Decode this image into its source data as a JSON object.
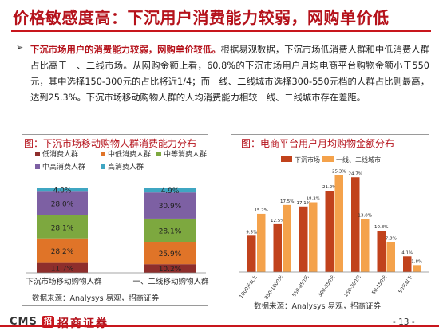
{
  "page": {
    "title": "价格敏感度高：下沉用户消费能力较弱，网购单价低",
    "bullet": "➢",
    "paragraph_highlight": "下沉市场用户的消费能力较弱，网购单价较低。",
    "paragraph_rest": "根据易观数据，下沉市场低消费人群和中低消费人群占比高于一、二线市场。从网购金额上看，60.8%的下沉市场用户月均电商平台购物金额小于550元，其中选择150-300元的占比将近1/4；而一线、二线城市选择300-550元档的人群占比则最高，达到25.3%。下沉市场移动购物人群的人均消费能力相较一线、二线城市存在差距。",
    "page_number": "- 13 -",
    "logo_text": "CMS",
    "logo_badge": "招",
    "logo_cn": "招商证券"
  },
  "colors": {
    "brand_red": "#b5121b",
    "low": "#8e2e2c",
    "mid_low": "#e07428",
    "mid": "#7da83f",
    "mid_high": "#7d60a3",
    "high": "#3fa6c2",
    "bar_dark": "#c1421c",
    "bar_light": "#f4a24b"
  },
  "chart_data": [
    {
      "type": "bar",
      "stacked": true,
      "title": "图：下沉市场移动购物人群消费能力分布",
      "source": "数据来源：Analysys 易观，招商证券",
      "categories": [
        "下沉市场移动购物人群",
        "一、二线移动购物人群"
      ],
      "legend_position": "top",
      "series": [
        {
          "name": "低消费人群",
          "color": "#8e2e2c",
          "values": [
            11.7,
            10.2
          ],
          "labels": [
            "11.7%",
            "10.2%"
          ]
        },
        {
          "name": "中低消费人群",
          "color": "#e07428",
          "values": [
            28.2,
            25.9
          ],
          "labels": [
            "28.2%",
            "25.9%"
          ]
        },
        {
          "name": "中等消费人群",
          "color": "#7da83f",
          "values": [
            28.1,
            28.1
          ],
          "labels": [
            "28.1%",
            "28.1%"
          ]
        },
        {
          "name": "中高消费人群",
          "color": "#7d60a3",
          "values": [
            28.0,
            30.9
          ],
          "labels": [
            "28.0%",
            "30.9%"
          ]
        },
        {
          "name": "高消费人群",
          "color": "#3fa6c2",
          "values": [
            4.0,
            4.9
          ],
          "labels": [
            "4.0%",
            "4.9%"
          ]
        }
      ],
      "ylim": [
        0,
        100
      ]
    },
    {
      "type": "bar",
      "title": "图：电商平台用户月均购物金额分布",
      "source": "数据来源：Analysys 易观，招商证券",
      "categories": [
        "1000元以上",
        "850-1000元",
        "550-850元",
        "300-550元",
        "150-300元",
        "50-150元",
        "50元以下"
      ],
      "legend_position": "top",
      "series": [
        {
          "name": "下沉市场",
          "color": "#c1421c",
          "values": [
            9.5,
            12.5,
            17.1,
            21.2,
            24.7,
            10.8,
            4.1
          ],
          "labels": [
            "9.5%",
            "12.5%",
            "17.1%",
            "21.2%",
            "24.7%",
            "10.8%",
            "4.1%"
          ]
        },
        {
          "name": "一线、二线城市",
          "color": "#f4a24b",
          "values": [
            15.2,
            17.5,
            18.2,
            25.3,
            13.8,
            7.8,
            1.8
          ],
          "labels": [
            "15.2%",
            "17.5%",
            "18.2%",
            "25.3%",
            "13.8%",
            "7.8%",
            "1.8%"
          ]
        }
      ],
      "ylim": [
        0,
        26
      ]
    }
  ]
}
